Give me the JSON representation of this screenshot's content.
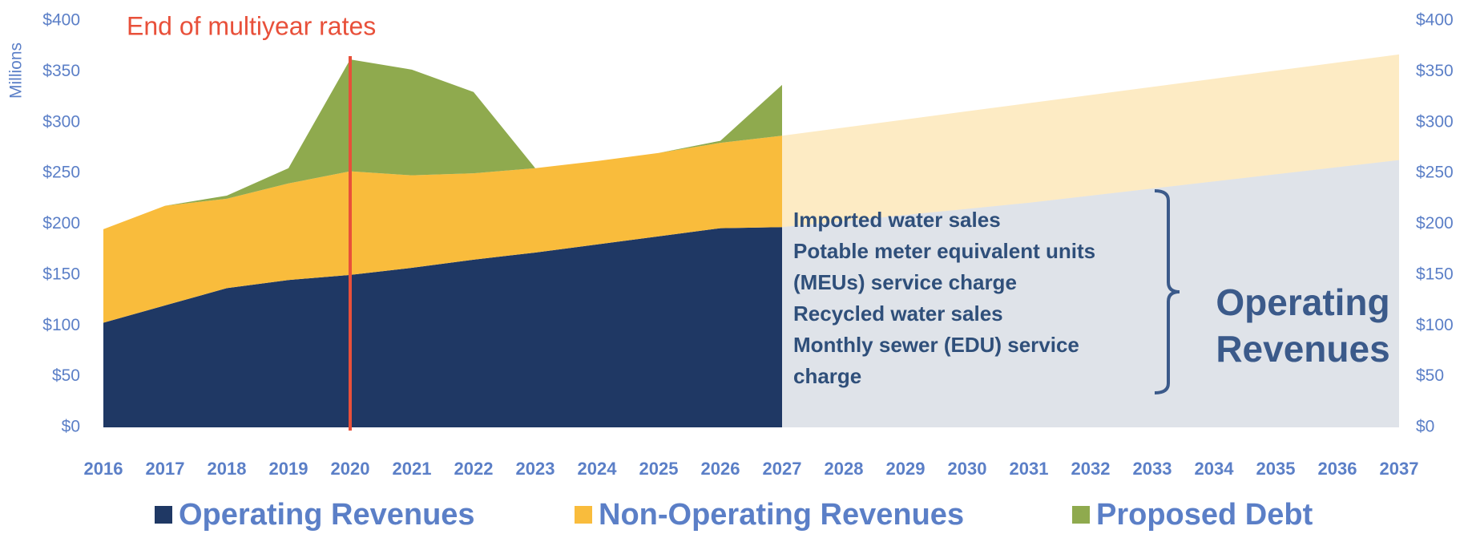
{
  "chart_data": {
    "type": "stacked_area",
    "y_axis_label": "Millions",
    "categories": [
      "2016",
      "2017",
      "2018",
      "2019",
      "2020",
      "2021",
      "2022",
      "2023",
      "2024",
      "2025",
      "2026",
      "2027",
      "2028",
      "2029",
      "2030",
      "2031",
      "2032",
      "2033",
      "2034",
      "2035",
      "2036",
      "2037"
    ],
    "series": [
      {
        "name": "Operating Revenues",
        "color": "#1f3864",
        "values": [
          103,
          120,
          137,
          145,
          150,
          157,
          165,
          172,
          180,
          188,
          196,
          197,
          203,
          209,
          215,
          221,
          228,
          235,
          242,
          249,
          256,
          263
        ]
      },
      {
        "name": "Non-Operating Revenues",
        "color": "#f9bc3c",
        "values": [
          92,
          98,
          88,
          95,
          102,
          91,
          85,
          83,
          82,
          82,
          84,
          90,
          92,
          94,
          96,
          98,
          99,
          100,
          101,
          102,
          103,
          104
        ]
      },
      {
        "name": "Proposed Debt",
        "color": "#8faa4e",
        "values": [
          0,
          0,
          3,
          15,
          110,
          104,
          80,
          0,
          0,
          0,
          2,
          50,
          null,
          null,
          null,
          null,
          null,
          null,
          null,
          null,
          null,
          null
        ]
      }
    ],
    "ylim": [
      0,
      400
    ],
    "yticks": [
      {
        "value": 0,
        "label": "$0"
      },
      {
        "value": 50,
        "label": "$50"
      },
      {
        "value": 100,
        "label": "$100"
      },
      {
        "value": 150,
        "label": "$150"
      },
      {
        "value": 200,
        "label": "$200"
      },
      {
        "value": 250,
        "label": "$250"
      },
      {
        "value": 300,
        "label": "$300"
      },
      {
        "value": 350,
        "label": "$350"
      },
      {
        "value": 400,
        "label": "$400"
      }
    ],
    "y2lim": [
      0,
      400
    ],
    "y2ticks": [
      {
        "value": 0,
        "label": "$0"
      },
      {
        "value": 50,
        "label": "$50"
      },
      {
        "value": 100,
        "label": "$100"
      },
      {
        "value": 150,
        "label": "$150"
      },
      {
        "value": 200,
        "label": "$200"
      },
      {
        "value": 250,
        "label": "$250"
      },
      {
        "value": 300,
        "label": "$300"
      },
      {
        "value": 350,
        "label": "$350"
      },
      {
        "value": 400,
        "label": "$400"
      }
    ],
    "marker": {
      "x": "2020",
      "label": "End of multiyear rates",
      "color": "#e8503a"
    },
    "note_lines": [
      "Imported water sales",
      "Potable meter equivalent units",
      "(MEUs) service charge",
      "Recycled water sales",
      "Monthly sewer (EDU) service",
      "charge"
    ],
    "note_label": [
      "Operating",
      "Revenues"
    ],
    "legend": "bottom"
  }
}
